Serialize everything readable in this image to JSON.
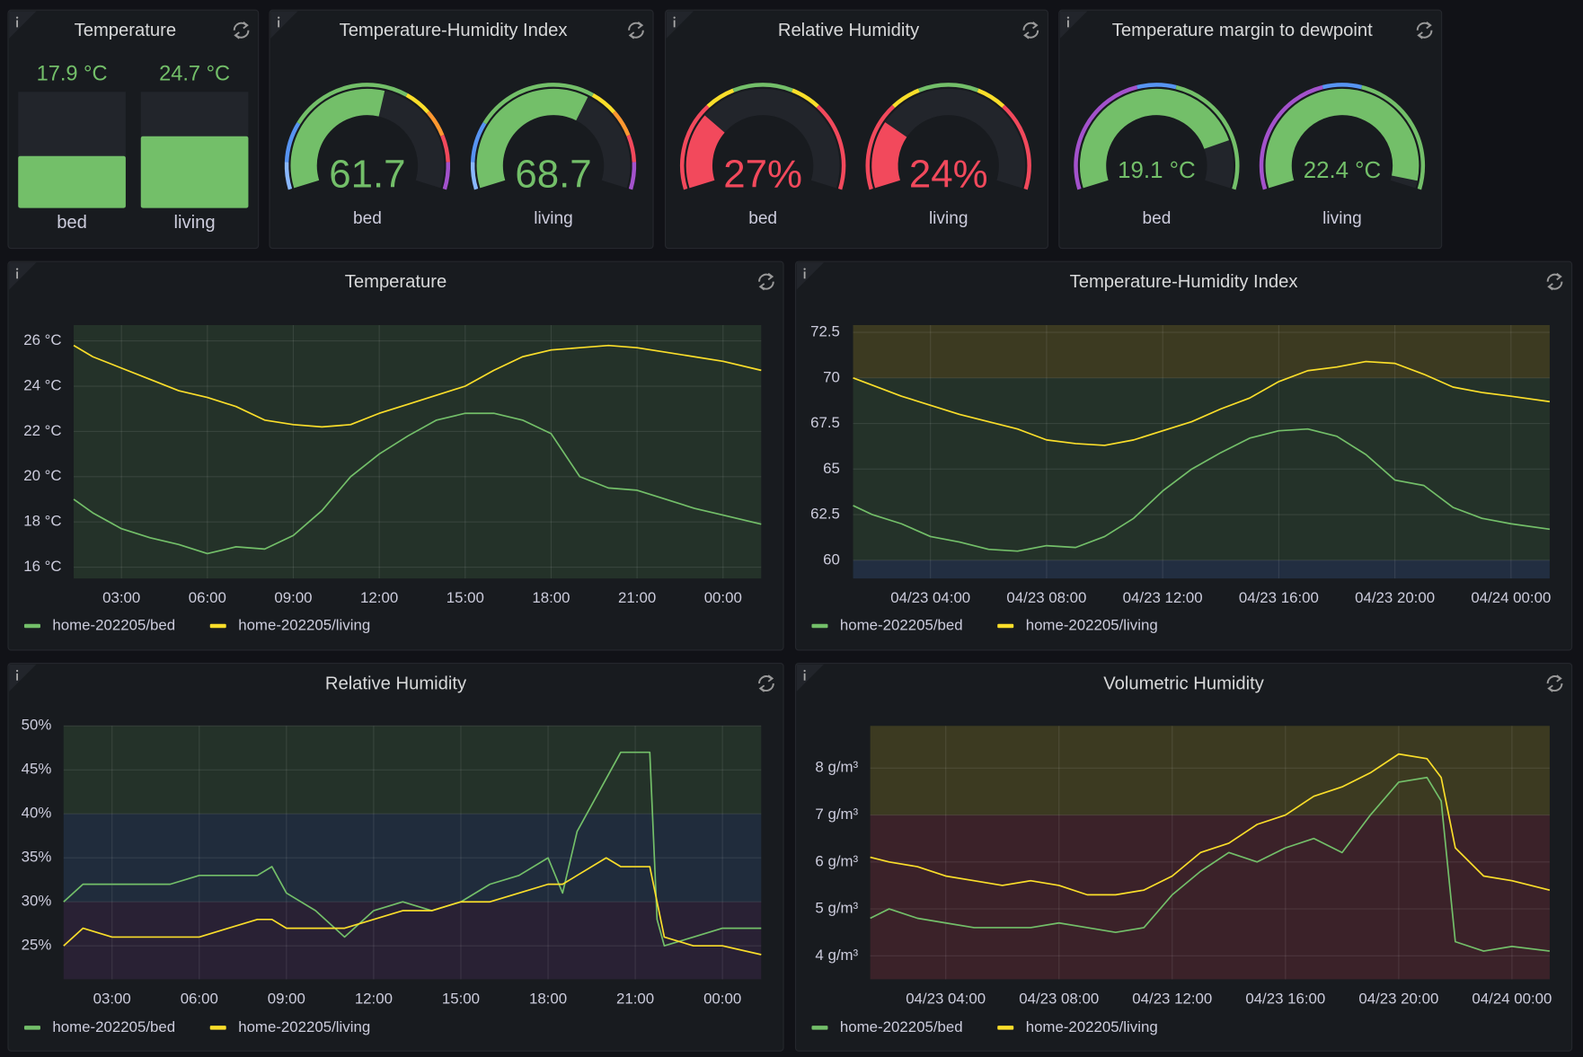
{
  "chart_data": [
    {
      "type": "bar",
      "title": "Temperature",
      "categories": [
        "bed",
        "living"
      ],
      "values": [
        17.9,
        24.7
      ],
      "value_labels": [
        "17.9 °C",
        "24.7 °C"
      ],
      "ylim": [
        0,
        40
      ],
      "color": "#73bf69"
    },
    {
      "type": "gauge",
      "title": "Temperature-Humidity Index",
      "categories": [
        "bed",
        "living"
      ],
      "values": [
        61.7,
        68.7
      ],
      "ylim": [
        0,
        110
      ],
      "thresholds": [
        {
          "value": 0,
          "color": "#8ab8ff"
        },
        {
          "value": 10,
          "color": "#5794f2"
        },
        {
          "value": 25,
          "color": "#73bf69"
        },
        {
          "value": 70,
          "color": "#fade2a"
        },
        {
          "value": 80,
          "color": "#ff9830"
        },
        {
          "value": 90,
          "color": "#f2495c"
        },
        {
          "value": 100,
          "color": "#a352cc"
        }
      ]
    },
    {
      "type": "gauge",
      "title": "Relative Humidity",
      "categories": [
        "bed",
        "living"
      ],
      "values": [
        27,
        24
      ],
      "value_labels": [
        "27%",
        "24%"
      ],
      "ylim": [
        0,
        100
      ],
      "thresholds": [
        {
          "value": 0,
          "color": "#f2495c"
        },
        {
          "value": 30,
          "color": "#fade2a"
        },
        {
          "value": 40,
          "color": "#73bf69"
        },
        {
          "value": 60,
          "color": "#fade2a"
        },
        {
          "value": 70,
          "color": "#f2495c"
        }
      ]
    },
    {
      "type": "gauge",
      "title": "Temperature margin to dewpoint",
      "categories": [
        "bed",
        "living"
      ],
      "values": [
        19.1,
        22.4
      ],
      "value_labels": [
        "19.1 °C",
        "22.4 °C"
      ],
      "ylim": [
        0,
        23
      ],
      "thresholds": [
        {
          "value": 0,
          "color": "#a352cc"
        },
        {
          "value": 10,
          "color": "#5794f2"
        },
        {
          "value": 13,
          "color": "#73bf69"
        }
      ]
    },
    {
      "type": "line",
      "title": "Temperature",
      "grid": true,
      "x": [
        "01:20",
        "02:00",
        "03:00",
        "04:00",
        "05:00",
        "06:00",
        "07:00",
        "08:00",
        "09:00",
        "10:00",
        "11:00",
        "12:00",
        "13:00",
        "14:00",
        "15:00",
        "16:00",
        "17:00",
        "18:00",
        "19:00",
        "20:00",
        "21:00",
        "22:00",
        "23:00",
        "00:00",
        "01:20"
      ],
      "xlim": [
        "01:20",
        "01:20"
      ],
      "xticks": [
        "03:00",
        "06:00",
        "09:00",
        "12:00",
        "15:00",
        "18:00",
        "21:00",
        "00:00"
      ],
      "ylim": [
        15.5,
        26.7
      ],
      "yticks": [
        {
          "value": 16,
          "label": "16 °C"
        },
        {
          "value": 18,
          "label": "18 °C"
        },
        {
          "value": 20,
          "label": "20 °C"
        },
        {
          "value": 22,
          "label": "22 °C"
        },
        {
          "value": 24,
          "label": "24 °C"
        },
        {
          "value": 26,
          "label": "26 °C"
        }
      ],
      "bands": [
        {
          "from": 15.5,
          "to": 26.7,
          "color": "rgba(115,191,105,0.14)"
        }
      ],
      "series": [
        {
          "name": "home-202205/bed",
          "color": "#73bf69",
          "values": [
            19.0,
            18.4,
            17.7,
            17.3,
            17.0,
            16.6,
            16.9,
            16.8,
            17.4,
            18.5,
            20.0,
            21.0,
            21.8,
            22.5,
            22.8,
            22.8,
            22.5,
            21.9,
            20.0,
            19.5,
            19.4,
            19.0,
            18.6,
            18.3,
            17.9
          ]
        },
        {
          "name": "home-202205/living",
          "color": "#fade2a",
          "values": [
            25.8,
            25.3,
            24.8,
            24.3,
            23.8,
            23.5,
            23.1,
            22.5,
            22.3,
            22.2,
            22.3,
            22.8,
            23.2,
            23.6,
            24.0,
            24.7,
            25.3,
            25.6,
            25.7,
            25.8,
            25.7,
            25.5,
            25.3,
            25.1,
            24.7
          ]
        }
      ]
    },
    {
      "type": "line",
      "title": "Temperature-Humidity Index",
      "grid": true,
      "x": [
        "04/23 01:20",
        "04/23 02:00",
        "04/23 03:00",
        "04/23 04:00",
        "04/23 05:00",
        "04/23 06:00",
        "04/23 07:00",
        "04/23 08:00",
        "04/23 09:00",
        "04/23 10:00",
        "04/23 11:00",
        "04/23 12:00",
        "04/23 13:00",
        "04/23 14:00",
        "04/23 15:00",
        "04/23 16:00",
        "04/23 17:00",
        "04/23 18:00",
        "04/23 19:00",
        "04/23 20:00",
        "04/23 21:00",
        "04/23 22:00",
        "04/23 23:00",
        "04/24 00:00",
        "04/24 01:20"
      ],
      "xlim": [
        "04/23 01:20",
        "04/24 01:20"
      ],
      "xticks": [
        "04/23 04:00",
        "04/23 08:00",
        "04/23 12:00",
        "04/23 16:00",
        "04/23 20:00",
        "04/24 00:00"
      ],
      "ylim": [
        59,
        72.9
      ],
      "yticks": [
        60,
        62.5,
        65,
        67.5,
        70,
        72.5
      ],
      "bands": [
        {
          "from": 59,
          "to": 60,
          "color": "rgba(87,148,242,0.16)"
        },
        {
          "from": 60,
          "to": 70,
          "color": "rgba(115,191,105,0.14)"
        },
        {
          "from": 70,
          "to": 72.9,
          "color": "rgba(250,222,42,0.16)"
        }
      ],
      "series": [
        {
          "name": "home-202205/bed",
          "color": "#73bf69",
          "values": [
            63.0,
            62.5,
            62.0,
            61.3,
            61.0,
            60.6,
            60.5,
            60.8,
            60.7,
            61.3,
            62.3,
            63.8,
            65.0,
            65.9,
            66.7,
            67.1,
            67.2,
            66.8,
            65.8,
            64.4,
            64.1,
            62.9,
            62.3,
            62.0,
            61.7
          ]
        },
        {
          "name": "home-202205/living",
          "color": "#fade2a",
          "values": [
            70.0,
            69.6,
            69.0,
            68.5,
            68.0,
            67.6,
            67.2,
            66.6,
            66.4,
            66.3,
            66.6,
            67.1,
            67.6,
            68.3,
            68.9,
            69.8,
            70.4,
            70.6,
            70.9,
            70.8,
            70.2,
            69.5,
            69.2,
            69.0,
            68.7
          ]
        }
      ]
    },
    {
      "type": "line",
      "title": "Relative Humidity",
      "grid": true,
      "x": [
        "01:20",
        "02:00",
        "03:00",
        "04:00",
        "05:00",
        "06:00",
        "07:00",
        "08:00",
        "08:30",
        "09:00",
        "10:00",
        "11:00",
        "12:00",
        "13:00",
        "14:00",
        "15:00",
        "16:00",
        "17:00",
        "18:00",
        "18:30",
        "19:00",
        "20:00",
        "20:30",
        "21:00",
        "21:30",
        "21:45",
        "22:00",
        "23:00",
        "00:00",
        "01:20"
      ],
      "xlim": [
        "01:20",
        "01:20"
      ],
      "xticks": [
        "03:00",
        "06:00",
        "09:00",
        "12:00",
        "15:00",
        "18:00",
        "21:00",
        "00:00"
      ],
      "ylim": [
        21.2,
        50
      ],
      "yticks": [
        {
          "value": 25,
          "label": "25%"
        },
        {
          "value": 30,
          "label": "30%"
        },
        {
          "value": 35,
          "label": "35%"
        },
        {
          "value": 40,
          "label": "40%"
        },
        {
          "value": 45,
          "label": "45%"
        },
        {
          "value": 50,
          "label": "50%"
        }
      ],
      "bands": [
        {
          "from": 21.2,
          "to": 30,
          "color": "rgba(163,82,204,0.12)"
        },
        {
          "from": 30,
          "to": 40,
          "color": "rgba(87,148,242,0.14)"
        },
        {
          "from": 40,
          "to": 50,
          "color": "rgba(115,191,105,0.14)"
        }
      ],
      "series": [
        {
          "name": "home-202205/bed",
          "color": "#73bf69",
          "values": [
            30,
            32,
            32,
            32,
            32,
            33,
            33,
            33,
            34,
            31,
            29,
            26,
            29,
            30,
            29,
            30,
            32,
            33,
            35,
            31,
            38,
            44,
            47,
            47,
            47,
            28,
            25,
            26,
            27,
            27
          ]
        },
        {
          "name": "home-202205/living",
          "color": "#fade2a",
          "values": [
            25,
            27,
            26,
            26,
            26,
            26,
            27,
            28,
            28,
            27,
            27,
            27,
            28,
            29,
            29,
            30,
            30,
            31,
            32,
            32,
            33,
            35,
            34,
            34,
            34,
            30,
            26,
            25,
            25,
            24
          ]
        }
      ]
    },
    {
      "type": "line",
      "title": "Volumetric Humidity",
      "grid": true,
      "x": [
        "04/23 01:20",
        "04/23 02:00",
        "04/23 03:00",
        "04/23 04:00",
        "04/23 05:00",
        "04/23 06:00",
        "04/23 07:00",
        "04/23 08:00",
        "04/23 09:00",
        "04/23 10:00",
        "04/23 11:00",
        "04/23 12:00",
        "04/23 13:00",
        "04/23 14:00",
        "04/23 15:00",
        "04/23 16:00",
        "04/23 17:00",
        "04/23 18:00",
        "04/23 19:00",
        "04/23 20:00",
        "04/23 21:00",
        "04/23 21:30",
        "04/23 22:00",
        "04/23 23:00",
        "04/24 00:00",
        "04/24 01:20"
      ],
      "xlim": [
        "04/23 01:20",
        "04/24 01:20"
      ],
      "xticks": [
        "04/23 04:00",
        "04/23 08:00",
        "04/23 12:00",
        "04/23 16:00",
        "04/23 20:00",
        "04/24 00:00"
      ],
      "ylim": [
        3.5,
        8.9
      ],
      "yticks": [
        {
          "value": 4,
          "label": "4 g/m³"
        },
        {
          "value": 5,
          "label": "5 g/m³"
        },
        {
          "value": 6,
          "label": "6 g/m³"
        },
        {
          "value": 7,
          "label": "7 g/m³"
        },
        {
          "value": 8,
          "label": "8 g/m³"
        }
      ],
      "bands": [
        {
          "from": 3.5,
          "to": 7,
          "color": "rgba(242,73,92,0.16)"
        },
        {
          "from": 7,
          "to": 8.9,
          "color": "rgba(250,222,42,0.16)"
        }
      ],
      "series": [
        {
          "name": "home-202205/bed",
          "color": "#73bf69",
          "values": [
            4.8,
            5.0,
            4.8,
            4.7,
            4.6,
            4.6,
            4.6,
            4.7,
            4.6,
            4.5,
            4.6,
            5.3,
            5.8,
            6.2,
            6.0,
            6.3,
            6.5,
            6.2,
            7.0,
            7.7,
            7.8,
            7.3,
            4.3,
            4.1,
            4.2,
            4.1
          ]
        },
        {
          "name": "home-202205/living",
          "color": "#fade2a",
          "values": [
            6.1,
            6.0,
            5.9,
            5.7,
            5.6,
            5.5,
            5.6,
            5.5,
            5.3,
            5.3,
            5.4,
            5.7,
            6.2,
            6.4,
            6.8,
            7.0,
            7.4,
            7.6,
            7.9,
            8.3,
            8.2,
            7.8,
            6.3,
            5.7,
            5.6,
            5.4
          ]
        }
      ]
    }
  ]
}
